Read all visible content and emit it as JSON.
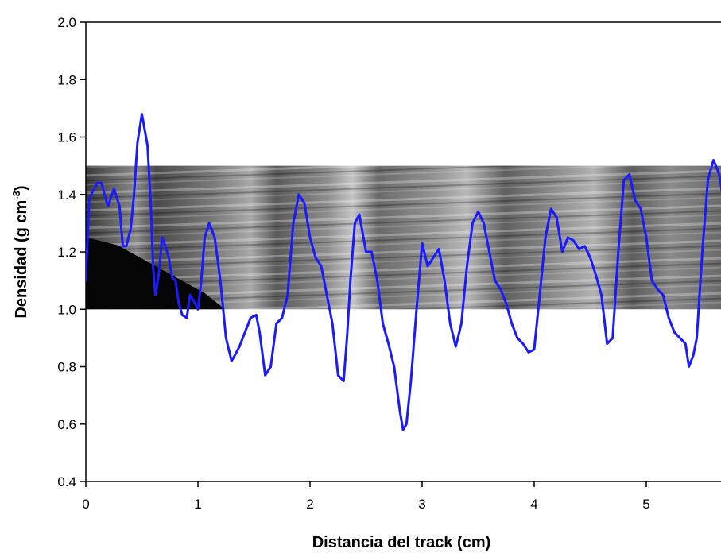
{
  "chart_data": {
    "type": "line",
    "xlabel": "Distancia del track (cm)",
    "ylabel": {
      "main": "Densidad (g cm",
      "sup": "-3",
      "close": ")"
    },
    "xlim": [
      0,
      5.7
    ],
    "ylim": [
      0.4,
      2.0
    ],
    "xticks": [
      "0",
      "1",
      "2",
      "3",
      "4",
      "5"
    ],
    "yticks": [
      "0.4",
      "0.6",
      "0.8",
      "1.0",
      "1.2",
      "1.4",
      "1.6",
      "1.8",
      "2.0"
    ],
    "grid": false,
    "line_color": "#1a1aff",
    "background_image": {
      "description": "grayscale density track scan",
      "x_range": [
        0,
        5.7
      ],
      "y_range": [
        1.0,
        1.5
      ]
    },
    "series": [
      {
        "x": [
          0.0,
          0.03,
          0.06,
          0.1,
          0.14,
          0.18,
          0.2,
          0.25,
          0.3,
          0.33,
          0.36,
          0.4,
          0.43,
          0.46,
          0.5,
          0.55,
          0.58,
          0.6,
          0.62,
          0.65,
          0.68,
          0.71,
          0.74,
          0.77,
          0.8,
          0.83,
          0.86,
          0.9,
          0.93,
          0.96,
          1.0,
          1.03,
          1.06,
          1.1,
          1.15,
          1.2,
          1.25,
          1.3,
          1.33,
          1.37,
          1.42,
          1.47,
          1.52,
          1.55,
          1.6,
          1.65,
          1.7,
          1.75,
          1.8,
          1.85,
          1.9,
          1.95,
          2.0,
          2.05,
          2.1,
          2.15,
          2.2,
          2.25,
          2.3,
          2.33,
          2.36,
          2.4,
          2.44,
          2.5,
          2.55,
          2.6,
          2.65,
          2.7,
          2.75,
          2.8,
          2.83,
          2.86,
          2.9,
          2.95,
          3.0,
          3.05,
          3.1,
          3.15,
          3.2,
          3.25,
          3.3,
          3.35,
          3.4,
          3.45,
          3.5,
          3.55,
          3.6,
          3.65,
          3.7,
          3.75,
          3.8,
          3.85,
          3.9,
          3.95,
          4.0,
          4.05,
          4.1,
          4.15,
          4.2,
          4.25,
          4.3,
          4.35,
          4.4,
          4.45,
          4.5,
          4.55,
          4.6,
          4.65,
          4.7,
          4.75,
          4.8,
          4.85,
          4.9,
          4.95,
          5.0,
          5.05,
          5.1,
          5.15,
          5.2,
          5.25,
          5.3,
          5.35,
          5.38,
          5.42,
          5.45,
          5.5,
          5.55,
          5.6,
          5.65,
          5.7
        ],
        "values": [
          1.1,
          1.38,
          1.41,
          1.44,
          1.44,
          1.38,
          1.36,
          1.42,
          1.36,
          1.22,
          1.22,
          1.28,
          1.4,
          1.58,
          1.68,
          1.57,
          1.36,
          1.15,
          1.05,
          1.12,
          1.25,
          1.22,
          1.18,
          1.11,
          1.1,
          1.02,
          0.98,
          0.97,
          1.05,
          1.03,
          1.0,
          1.1,
          1.25,
          1.3,
          1.25,
          1.1,
          0.9,
          0.82,
          0.84,
          0.87,
          0.92,
          0.97,
          0.98,
          0.92,
          0.77,
          0.8,
          0.95,
          0.97,
          1.05,
          1.3,
          1.4,
          1.37,
          1.25,
          1.18,
          1.15,
          1.05,
          0.95,
          0.77,
          0.75,
          0.9,
          1.1,
          1.3,
          1.33,
          1.2,
          1.2,
          1.1,
          0.95,
          0.88,
          0.8,
          0.65,
          0.58,
          0.6,
          0.75,
          1.0,
          1.23,
          1.15,
          1.18,
          1.21,
          1.1,
          0.95,
          0.87,
          0.95,
          1.15,
          1.3,
          1.34,
          1.3,
          1.2,
          1.1,
          1.07,
          1.02,
          0.95,
          0.9,
          0.88,
          0.85,
          0.86,
          1.05,
          1.25,
          1.35,
          1.32,
          1.2,
          1.25,
          1.24,
          1.21,
          1.22,
          1.18,
          1.12,
          1.05,
          0.88,
          0.9,
          1.2,
          1.45,
          1.47,
          1.38,
          1.35,
          1.25,
          1.1,
          1.07,
          1.05,
          0.97,
          0.92,
          0.9,
          0.88,
          0.8,
          0.84,
          0.9,
          1.2,
          1.45,
          1.52,
          1.47,
          1.35
        ]
      }
    ]
  }
}
